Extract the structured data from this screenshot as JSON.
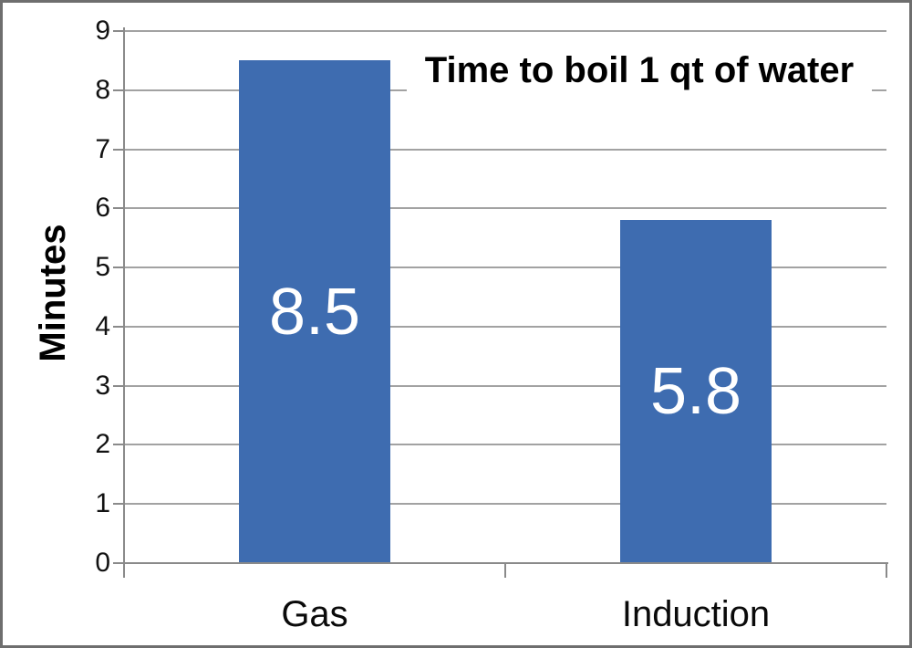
{
  "chart_data": {
    "type": "bar",
    "title": "Time to boil 1 qt of water",
    "ylabel": "Minutes",
    "xlabel": "",
    "categories": [
      "Gas",
      "Induction"
    ],
    "values": [
      8.5,
      5.8
    ],
    "value_labels": [
      "8.5",
      "5.8"
    ],
    "ylim": [
      0,
      9
    ],
    "yticks": [
      0,
      1,
      2,
      3,
      4,
      5,
      6,
      7,
      8,
      9
    ],
    "grid": "horizontal-major",
    "legend": "none",
    "title_position": "inside-top-right",
    "colors": {
      "bar": "#3e6cb0",
      "bar_label": "#ffffff",
      "gridline": "#a2a2a2",
      "axis": "#8a8a8a",
      "text": "#121212",
      "background": "#ffffff",
      "frame_border": "#6e6e6e"
    }
  }
}
